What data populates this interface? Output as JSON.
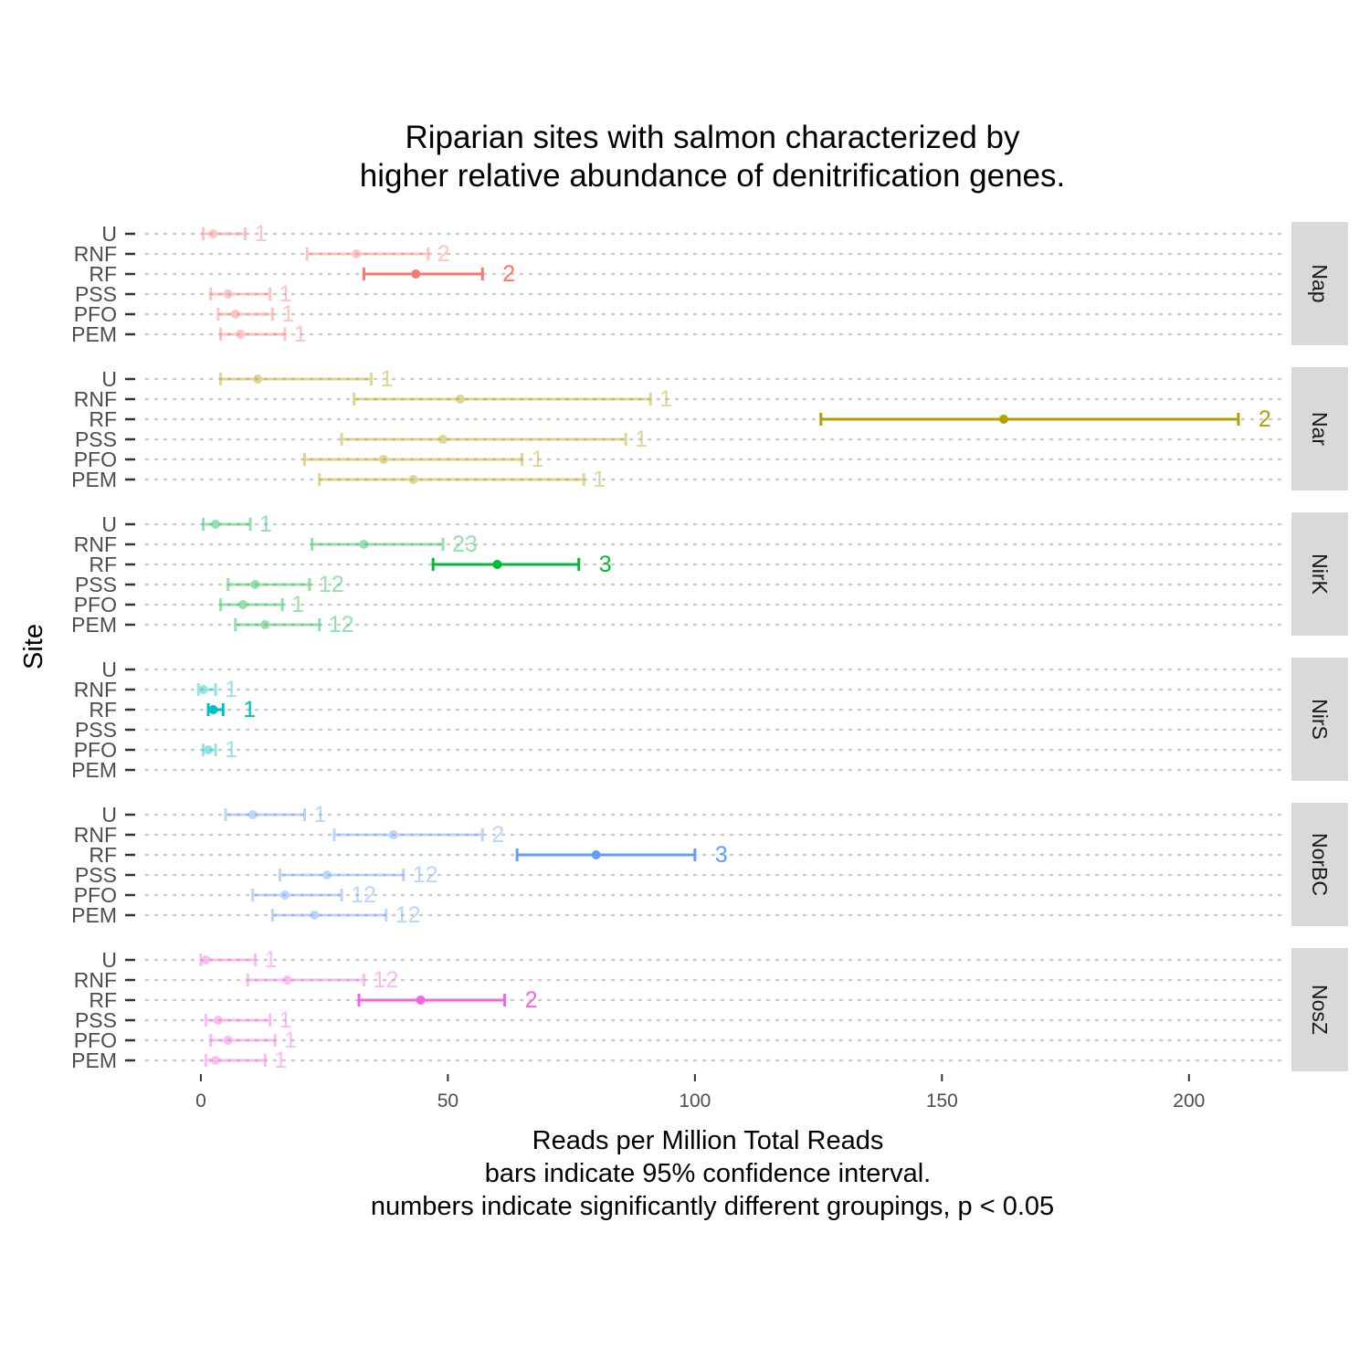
{
  "chart_data": {
    "type": "errorbar",
    "title": [
      "Riparian sites with salmon characterized by",
      "higher relative abundance of denitrification genes."
    ],
    "xlabel": [
      "Reads per Million Total Reads",
      "bars indicate 95% confidence interval.",
      "numbers indicate significantly different groupings, p < 0.05"
    ],
    "ylabel": "Site",
    "xlim": [
      -12,
      220
    ],
    "xticks": [
      0,
      50,
      100,
      150,
      200
    ],
    "sites": [
      "U",
      "RNF",
      "RF",
      "PSS",
      "PFO",
      "PEM"
    ],
    "grid": "dotted-horizontal",
    "facets": [
      {
        "gene": "Nap",
        "color": "#F8766D",
        "rows": [
          {
            "site": "U",
            "mean": 2.5,
            "lo": 0.5,
            "hi": 9,
            "group": "1"
          },
          {
            "site": "RNF",
            "mean": 31.5,
            "lo": 21.5,
            "hi": 46,
            "group": "2"
          },
          {
            "site": "RF",
            "mean": 43.5,
            "lo": 33,
            "hi": 57,
            "group": "2",
            "highlight": true
          },
          {
            "site": "PSS",
            "mean": 5.5,
            "lo": 2,
            "hi": 14,
            "group": "1"
          },
          {
            "site": "PFO",
            "mean": 7,
            "lo": 3.5,
            "hi": 14.5,
            "group": "1"
          },
          {
            "site": "PEM",
            "mean": 8,
            "lo": 4,
            "hi": 17,
            "group": "1"
          }
        ]
      },
      {
        "gene": "Nar",
        "color": "#B79F00",
        "rows": [
          {
            "site": "U",
            "mean": 11.5,
            "lo": 4,
            "hi": 34.5,
            "group": "1"
          },
          {
            "site": "RNF",
            "mean": 52.5,
            "lo": 31,
            "hi": 91,
            "group": "1"
          },
          {
            "site": "RF",
            "mean": 162.5,
            "lo": 125.5,
            "hi": 210,
            "group": "2",
            "highlight": true
          },
          {
            "site": "PSS",
            "mean": 49,
            "lo": 28.5,
            "hi": 86,
            "group": "1"
          },
          {
            "site": "PFO",
            "mean": 37,
            "lo": 21,
            "hi": 65,
            "group": "1"
          },
          {
            "site": "PEM",
            "mean": 43,
            "lo": 24,
            "hi": 77.5,
            "group": "1"
          }
        ]
      },
      {
        "gene": "NirK",
        "color": "#00BA38",
        "rows": [
          {
            "site": "U",
            "mean": 3,
            "lo": 0.5,
            "hi": 10,
            "group": "1"
          },
          {
            "site": "RNF",
            "mean": 33,
            "lo": 22.5,
            "hi": 49,
            "group": "23"
          },
          {
            "site": "RF",
            "mean": 60,
            "lo": 47,
            "hi": 76.5,
            "group": "3",
            "highlight": true
          },
          {
            "site": "PSS",
            "mean": 11,
            "lo": 5.5,
            "hi": 22,
            "group": "12"
          },
          {
            "site": "PFO",
            "mean": 8.5,
            "lo": 4,
            "hi": 16.5,
            "group": "1"
          },
          {
            "site": "PEM",
            "mean": 13,
            "lo": 7,
            "hi": 24,
            "group": "12"
          }
        ]
      },
      {
        "gene": "NirS",
        "color": "#00BFC4",
        "rows": [
          {
            "site": "RNF",
            "mean": 0.5,
            "lo": -0.5,
            "hi": 3,
            "group": "1"
          },
          {
            "site": "RF",
            "mean": 2.5,
            "lo": 1.5,
            "hi": 4.5,
            "group": "1",
            "highlight": true
          },
          {
            "site": "PFO",
            "mean": 1.5,
            "lo": 0.5,
            "hi": 3,
            "group": "1"
          }
        ]
      },
      {
        "gene": "NorBC",
        "color": "#619CFF",
        "rows": [
          {
            "site": "U",
            "mean": 10.5,
            "lo": 5,
            "hi": 21,
            "group": "1"
          },
          {
            "site": "RNF",
            "mean": 39,
            "lo": 27,
            "hi": 57,
            "group": "2"
          },
          {
            "site": "RF",
            "mean": 80,
            "lo": 64,
            "hi": 100,
            "group": "3",
            "highlight": true
          },
          {
            "site": "PSS",
            "mean": 25.5,
            "lo": 16,
            "hi": 41,
            "group": "12"
          },
          {
            "site": "PFO",
            "mean": 17,
            "lo": 10.5,
            "hi": 28.5,
            "group": "12"
          },
          {
            "site": "PEM",
            "mean": 23,
            "lo": 14.5,
            "hi": 37.5,
            "group": "12"
          }
        ]
      },
      {
        "gene": "NosZ",
        "color": "#F564E3",
        "rows": [
          {
            "site": "U",
            "mean": 1,
            "lo": 0,
            "hi": 11,
            "group": "1"
          },
          {
            "site": "RNF",
            "mean": 17.5,
            "lo": 9.5,
            "hi": 33,
            "group": "12"
          },
          {
            "site": "RF",
            "mean": 44.5,
            "lo": 32,
            "hi": 61.5,
            "group": "2",
            "highlight": true
          },
          {
            "site": "PSS",
            "mean": 3.5,
            "lo": 1,
            "hi": 14,
            "group": "1"
          },
          {
            "site": "PFO",
            "mean": 5.5,
            "lo": 2,
            "hi": 15,
            "group": "1"
          },
          {
            "site": "PEM",
            "mean": 3,
            "lo": 1,
            "hi": 13,
            "group": "1"
          }
        ]
      }
    ]
  }
}
